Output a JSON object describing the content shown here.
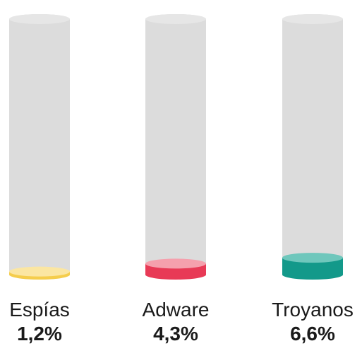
{
  "chart_data": {
    "type": "bar",
    "title": "",
    "xlabel": "",
    "ylabel": "",
    "ylim": [
      0,
      100
    ],
    "categories": [
      "Espías",
      "Adware",
      "Troyanos"
    ],
    "values": [
      1.2,
      4.3,
      6.6
    ],
    "value_labels": [
      "1,2%",
      "4,3%",
      "6,6%"
    ],
    "colors": {
      "fill": [
        "#f5cd4c",
        "#e83a56",
        "#13998a"
      ],
      "fill_top": [
        "#fbe6a2",
        "#f5a0ad",
        "#6fc7bc"
      ],
      "tube": "#dcdcdc",
      "tube_top": "#e6e6e6"
    },
    "grid": false,
    "legend": "none"
  }
}
